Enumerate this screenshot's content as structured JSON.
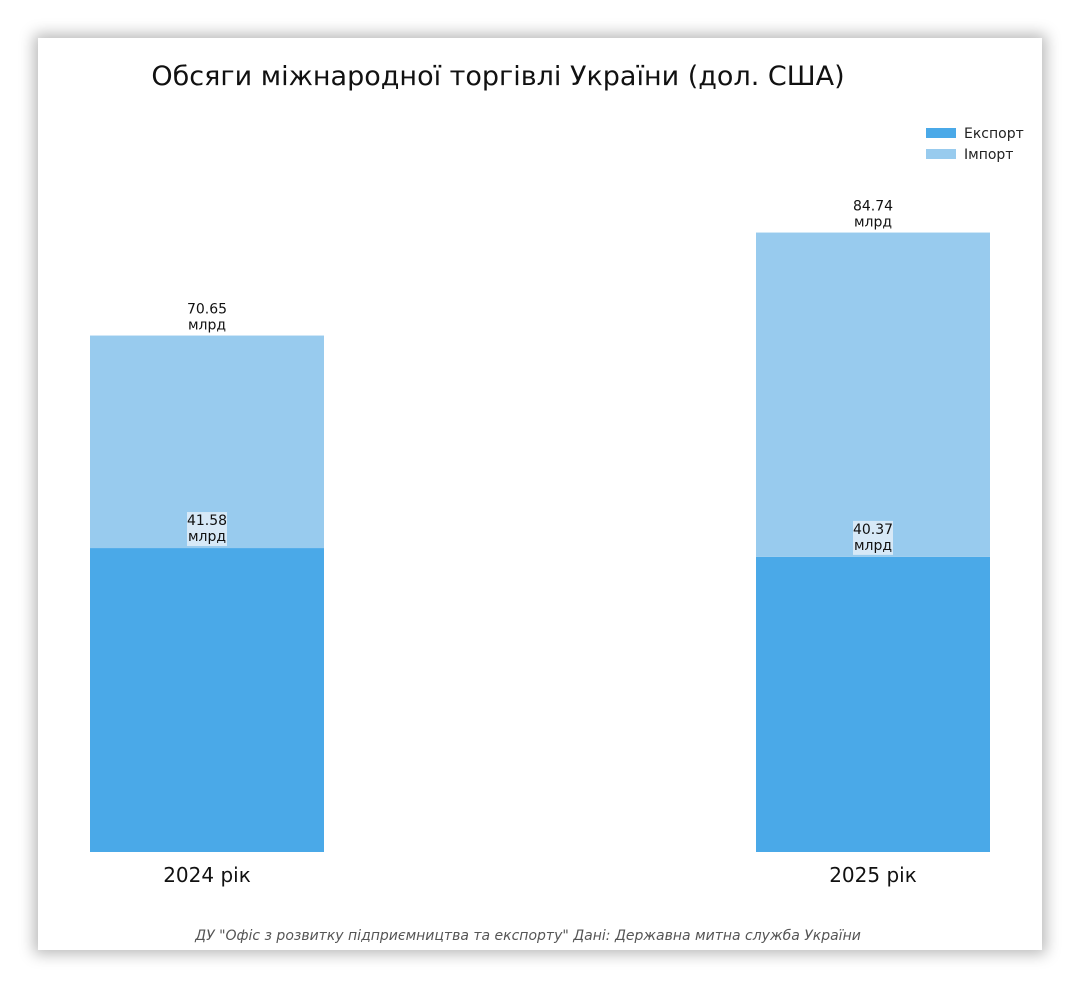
{
  "chart_data": {
    "type": "bar",
    "stacked": true,
    "title": "Обсяги міжнародної торгівлі України (дол. США)",
    "categories": [
      "2024 рік",
      "2025 рік"
    ],
    "series": [
      {
        "name": "Експорт",
        "values": [
          41.58,
          40.37
        ],
        "color": "#4aa9e8"
      },
      {
        "name": "Імпорт",
        "values": [
          29.07,
          44.37
        ],
        "color": "#98cbee"
      }
    ],
    "totals": [
      70.65,
      84.74
    ],
    "export_labels": [
      "41.58",
      "40.37"
    ],
    "total_labels": [
      "70.65",
      "84.74"
    ],
    "unit": "млрд",
    "legend_position": "top-right",
    "ylim": [
      0,
      90
    ],
    "source": "ДУ \"Офіс з розвитку підприємництва та експорту\" Дані: Державна митна служба України"
  }
}
